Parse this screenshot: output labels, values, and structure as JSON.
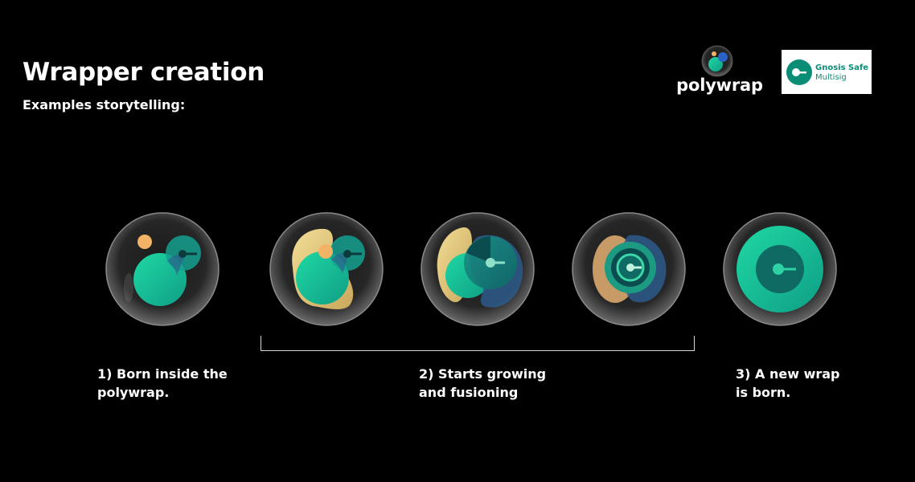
{
  "header": {
    "title": "Wrapper creation",
    "subtitle": "Examples storytelling:"
  },
  "logos": {
    "polywrap": "polywrap",
    "gnosis_line1": "Gnosis Safe",
    "gnosis_line2": "Multisig"
  },
  "colors": {
    "background": "#000000",
    "teal": "#1ecf9f",
    "gnosis_green": "#0a8d75",
    "yellow": "#e5c97a",
    "orange_dot": "#f3b366",
    "blue": "#2f5d8c"
  },
  "steps": [
    {
      "label": "1) Born inside the\npolywrap."
    },
    {
      "label": "2) Starts growing\nand fusioning"
    },
    {
      "label": "3) A new wrap\nis born."
    }
  ],
  "stages_icon": "glass-bubble-icon"
}
